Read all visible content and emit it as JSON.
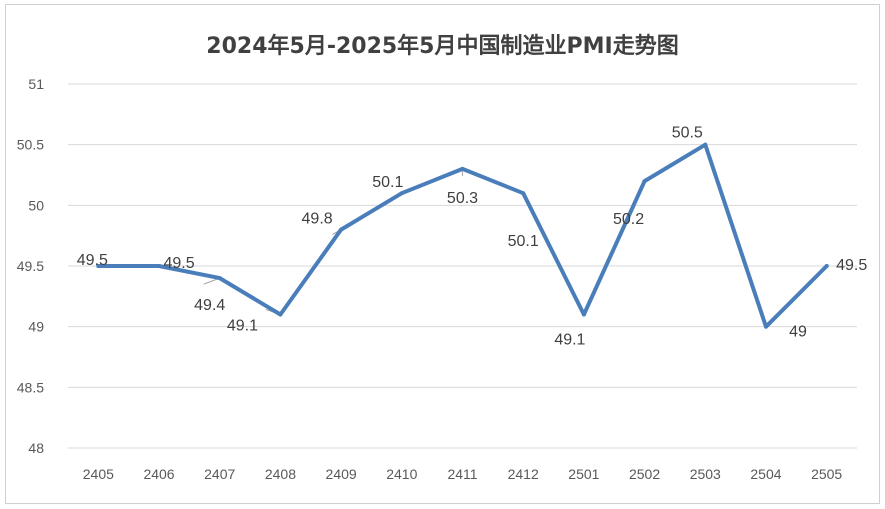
{
  "chart_data": {
    "type": "line",
    "title": "2024年5月-2025年5月中国制造业PMI走势图",
    "categories": [
      "2405",
      "2406",
      "2407",
      "2408",
      "2409",
      "2410",
      "2411",
      "2412",
      "2501",
      "2502",
      "2503",
      "2504",
      "2505"
    ],
    "series": [
      {
        "values": [
          49.5,
          49.5,
          49.4,
          49.1,
          49.8,
          50.1,
          50.3,
          50.1,
          49.1,
          50.2,
          50.5,
          49.0,
          49.5
        ]
      }
    ],
    "data_labels": [
      "49.5",
      "49.5",
      "49.4",
      "49.1",
      "49.8",
      "50.1",
      "50.3",
      "50.1",
      "49.1",
      "50.2",
      "50.5",
      "49",
      "49.5"
    ],
    "ylim": [
      48,
      51
    ],
    "yticks": [
      "51",
      "50.5",
      "50",
      "49.5",
      "49",
      "48.5",
      "48"
    ],
    "grid": true,
    "legend": "none",
    "line_color": "#4a7ebb",
    "grid_color": "#d9d9d9"
  }
}
